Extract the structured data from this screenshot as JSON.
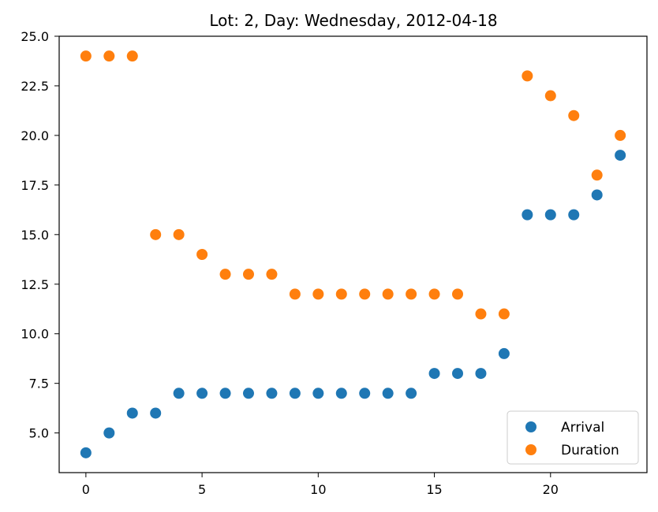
{
  "chart_data": {
    "type": "scatter",
    "title": "Lot: 2, Day: Wednesday, 2012-04-18",
    "xlabel": "",
    "ylabel": "",
    "xlim": [
      -1.15,
      24.15
    ],
    "ylim": [
      3.0,
      25.0
    ],
    "xticks": [
      0,
      5,
      10,
      15,
      20
    ],
    "yticks": [
      5.0,
      7.5,
      10.0,
      12.5,
      15.0,
      17.5,
      20.0,
      22.5,
      25.0
    ],
    "ytick_labels": [
      "5.0",
      "7.5",
      "10.0",
      "12.5",
      "15.0",
      "17.5",
      "20.0",
      "22.5",
      "25.0"
    ],
    "grid": false,
    "legend_position": "lower-right",
    "x": [
      0,
      1,
      2,
      3,
      4,
      5,
      6,
      7,
      8,
      9,
      10,
      11,
      12,
      13,
      14,
      15,
      16,
      17,
      18,
      19,
      20,
      21,
      22,
      23
    ],
    "series": [
      {
        "name": "Arrival",
        "color": "#1f77b4",
        "values": [
          4,
          5,
          6,
          6,
          7,
          7,
          7,
          7,
          7,
          7,
          7,
          7,
          7,
          7,
          7,
          8,
          8,
          8,
          9,
          16,
          16,
          16,
          17,
          19
        ]
      },
      {
        "name": "Duration",
        "color": "#ff7f0e",
        "values": [
          24,
          24,
          24,
          15,
          15,
          14,
          13,
          13,
          13,
          12,
          12,
          12,
          12,
          12,
          12,
          12,
          12,
          11,
          11,
          23,
          22,
          21,
          18,
          20
        ]
      }
    ]
  }
}
